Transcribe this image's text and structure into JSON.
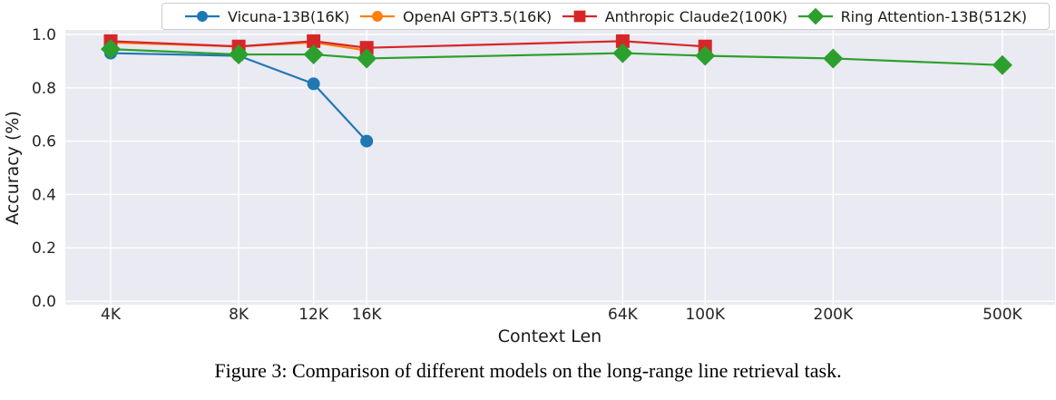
{
  "figure": {
    "caption": "Figure 3: Comparison of different models on the long-range line retrieval task."
  },
  "chart_data": {
    "type": "line",
    "title": "",
    "xlabel": "Context Len",
    "ylabel": "Accuracy (%)",
    "x_scale": "log",
    "x_tick_values": [
      4000,
      8000,
      12000,
      16000,
      64000,
      100000,
      200000,
      500000
    ],
    "x_tick_labels": [
      "4K",
      "8K",
      "12K",
      "16K",
      "64K",
      "100K",
      "200K",
      "500K"
    ],
    "y_tick_values": [
      0.0,
      0.2,
      0.4,
      0.6,
      0.8,
      1.0
    ],
    "y_tick_labels": [
      "0.0",
      "0.2",
      "0.4",
      "0.6",
      "0.8",
      "1.0"
    ],
    "ylim": [
      0.0,
      1.02
    ],
    "grid": true,
    "grid_color": "#ffffff",
    "plot_bg": "#eaeaf2",
    "tick_color": "#262626",
    "label_color": "#1a1a1a",
    "legend_position": "top",
    "series": [
      {
        "name": "Vicuna-13B(16K)",
        "color": "#1f77b4",
        "marker": "circle",
        "x": [
          4000,
          8000,
          12000,
          16000
        ],
        "values": [
          0.93,
          0.92,
          0.815,
          0.6
        ]
      },
      {
        "name": "OpenAI GPT3.5(16K)",
        "color": "#ff7f0e",
        "marker": "circle",
        "x": [
          4000,
          8000,
          12000,
          16000
        ],
        "values": [
          0.97,
          0.955,
          0.97,
          0.94
        ]
      },
      {
        "name": "Anthropic Claude2(100K)",
        "color": "#d62728",
        "marker": "square",
        "x": [
          4000,
          8000,
          12000,
          16000,
          64000,
          100000
        ],
        "values": [
          0.975,
          0.955,
          0.975,
          0.95,
          0.975,
          0.955
        ]
      },
      {
        "name": "Ring Attention-13B(512K)",
        "color": "#2ca02c",
        "marker": "diamond",
        "x": [
          4000,
          8000,
          12000,
          16000,
          64000,
          100000,
          200000,
          500000
        ],
        "values": [
          0.945,
          0.925,
          0.925,
          0.91,
          0.93,
          0.92,
          0.91,
          0.885
        ]
      }
    ]
  }
}
